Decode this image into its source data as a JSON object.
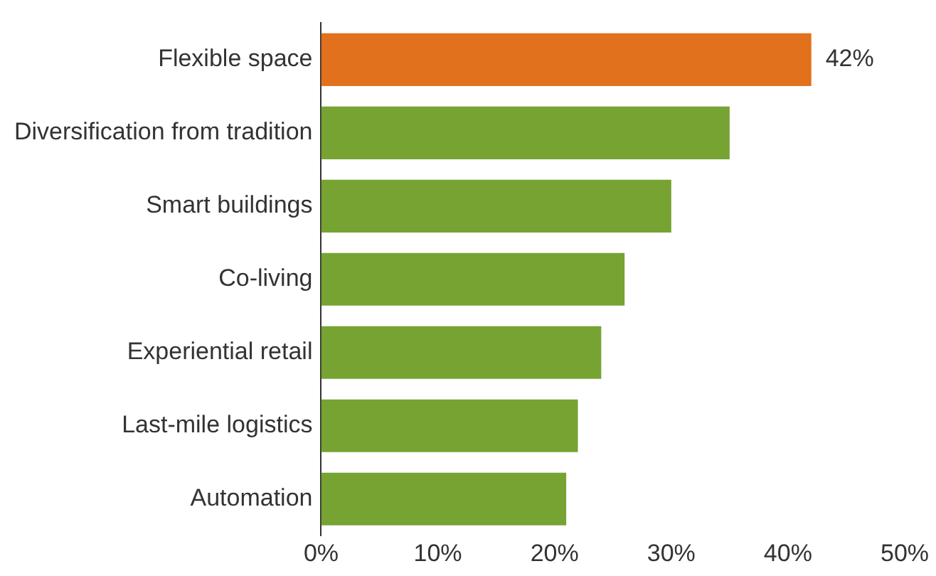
{
  "chart_data": {
    "type": "bar",
    "orientation": "horizontal",
    "categories": [
      "Flexible space",
      "Diversification from tradition",
      "Smart buildings",
      "Co-living",
      "Experiential retail",
      "Last-mile logistics",
      "Automation"
    ],
    "values": [
      42,
      35,
      30,
      26,
      24,
      22,
      21
    ],
    "colors": [
      "#e2711d",
      "#76a332",
      "#76a332",
      "#76a332",
      "#76a332",
      "#76a332",
      "#76a332"
    ],
    "value_labels": [
      "42%",
      null,
      null,
      null,
      null,
      null,
      null
    ],
    "xlim": [
      0,
      50
    ],
    "xticks": [
      {
        "value": 0,
        "label": "0%"
      },
      {
        "value": 10,
        "label": "10%"
      },
      {
        "value": 20,
        "label": "20%"
      },
      {
        "value": 30,
        "label": "30%"
      },
      {
        "value": 40,
        "label": "40%"
      },
      {
        "value": 50,
        "label": "50%"
      }
    ],
    "grid": false,
    "legend": false
  }
}
